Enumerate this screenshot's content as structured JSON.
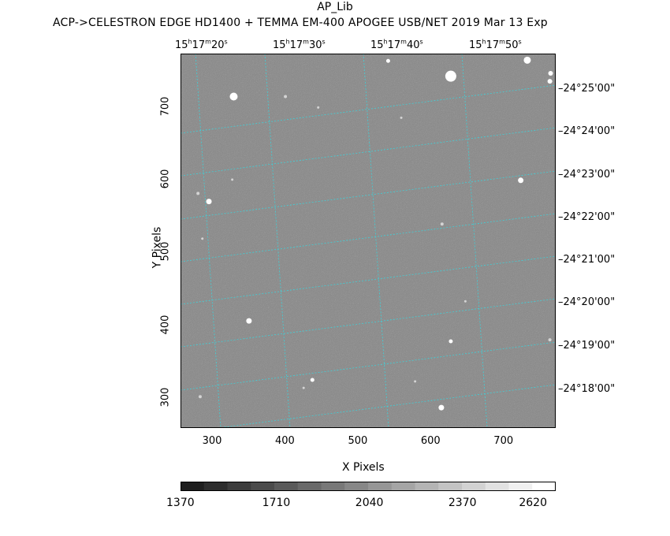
{
  "header": {
    "title": "AP_Lib",
    "subtitle": "ACP->CELESTRON EDGE HD1400 + TEMMA EM-400 APOGEE USB/NET   2019 Mar 13    Exp"
  },
  "ra_labels": [
    {
      "h": "15",
      "m": "17",
      "s": "20"
    },
    {
      "h": "15",
      "m": "17",
      "s": "30"
    },
    {
      "h": "15",
      "m": "17",
      "s": "40"
    },
    {
      "h": "15",
      "m": "17",
      "s": "50"
    }
  ],
  "dec_labels": [
    "-24°25'00\"",
    "-24°24'00\"",
    "-24°23'00\"",
    "-24°22'00\"",
    "-24°21'00\"",
    "-24°20'00\"",
    "-24°19'00\"",
    "-24°18'00\""
  ],
  "axes": {
    "x_label": "X Pixels",
    "y_label": "Y Pixels",
    "x_ticks": [
      "300",
      "400",
      "500",
      "600",
      "700"
    ],
    "y_ticks": [
      "700",
      "600",
      "500",
      "400",
      "300"
    ],
    "x_range": [
      255,
      770
    ],
    "y_range": [
      258,
      772
    ]
  },
  "colorbar": {
    "labels": [
      "1370",
      "1710",
      "2040",
      "2370",
      "2620"
    ],
    "min": 1370,
    "max": 2700
  },
  "colors": {
    "background": "#8d8d8d",
    "grid": "#3fd0d8",
    "star": "#ffffff"
  },
  "stars": [
    {
      "x": 626,
      "y": 741,
      "r": 7
    },
    {
      "x": 328,
      "y": 713,
      "r": 5
    },
    {
      "x": 731,
      "y": 763,
      "r": 4.5
    },
    {
      "x": 540,
      "y": 762,
      "r": 2.5
    },
    {
      "x": 763,
      "y": 745,
      "r": 3
    },
    {
      "x": 762,
      "y": 734,
      "r": 3
    },
    {
      "x": 399,
      "y": 713,
      "r": 2
    },
    {
      "x": 444,
      "y": 698,
      "r": 1.5
    },
    {
      "x": 558,
      "y": 684,
      "r": 1.5
    },
    {
      "x": 722,
      "y": 598,
      "r": 3.5
    },
    {
      "x": 294,
      "y": 569,
      "r": 3.5
    },
    {
      "x": 279,
      "y": 580,
      "r": 2
    },
    {
      "x": 326,
      "y": 599,
      "r": 1.5
    },
    {
      "x": 614,
      "y": 538,
      "r": 2
    },
    {
      "x": 285,
      "y": 518,
      "r": 1.5
    },
    {
      "x": 349,
      "y": 405,
      "r": 3.5
    },
    {
      "x": 626,
      "y": 377,
      "r": 2.5
    },
    {
      "x": 646,
      "y": 432,
      "r": 1.5
    },
    {
      "x": 762,
      "y": 379,
      "r": 2
    },
    {
      "x": 436,
      "y": 324,
      "r": 2.5
    },
    {
      "x": 577,
      "y": 322,
      "r": 1.5
    },
    {
      "x": 613,
      "y": 286,
      "r": 3.5
    },
    {
      "x": 282,
      "y": 301,
      "r": 2
    },
    {
      "x": 424,
      "y": 313,
      "r": 1.5
    }
  ]
}
